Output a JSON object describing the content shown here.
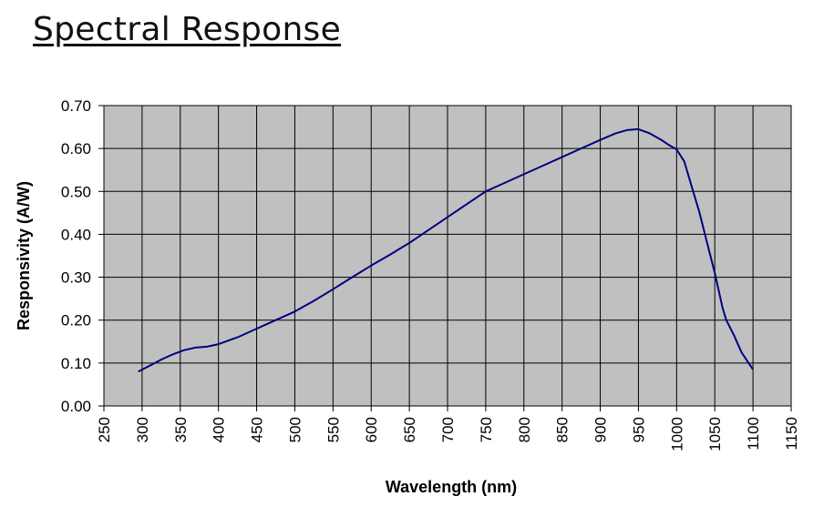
{
  "page": {
    "title": "Spectral Response"
  },
  "chart_data": {
    "type": "line",
    "title": "Spectral Response",
    "xlabel": "Wavelength (nm)",
    "ylabel": "Responsivity (A/W)",
    "xlim": [
      250,
      1150
    ],
    "ylim": [
      0,
      0.7
    ],
    "x_ticks": [
      250,
      300,
      350,
      400,
      450,
      500,
      550,
      600,
      650,
      700,
      750,
      800,
      850,
      900,
      950,
      1000,
      1050,
      1100,
      1150
    ],
    "y_ticks": [
      0.0,
      0.1,
      0.2,
      0.3,
      0.4,
      0.5,
      0.6,
      0.7
    ],
    "x_tick_labels": [
      "250",
      "300",
      "350",
      "400",
      "450",
      "500",
      "550",
      "600",
      "650",
      "700",
      "750",
      "800",
      "850",
      "900",
      "950",
      "1000",
      "1050",
      "1100",
      "1150"
    ],
    "y_tick_labels": [
      "0.00",
      "0.10",
      "0.20",
      "0.30",
      "0.40",
      "0.50",
      "0.60",
      "0.70"
    ],
    "grid": true,
    "colors": {
      "plot_background": "#c0c0c0",
      "grid": "#000000",
      "line": "#000080"
    },
    "series": [
      {
        "x": [
          295,
          310,
          325,
          340,
          355,
          370,
          385,
          400,
          425,
          450,
          475,
          500,
          525,
          550,
          575,
          600,
          625,
          650,
          675,
          700,
          725,
          750,
          775,
          800,
          825,
          850,
          875,
          900,
          920,
          935,
          950,
          965,
          980,
          990,
          1000,
          1010,
          1020,
          1030,
          1040,
          1050,
          1060,
          1065,
          1075,
          1085,
          1100
        ],
        "y": [
          0.08,
          0.094,
          0.108,
          0.12,
          0.13,
          0.136,
          0.138,
          0.144,
          0.16,
          0.18,
          0.2,
          0.22,
          0.245,
          0.272,
          0.3,
          0.327,
          0.353,
          0.38,
          0.41,
          0.44,
          0.47,
          0.5,
          0.52,
          0.54,
          0.56,
          0.58,
          0.6,
          0.62,
          0.635,
          0.643,
          0.645,
          0.635,
          0.62,
          0.608,
          0.598,
          0.57,
          0.51,
          0.45,
          0.38,
          0.31,
          0.23,
          0.2,
          0.165,
          0.125,
          0.085
        ]
      }
    ]
  }
}
